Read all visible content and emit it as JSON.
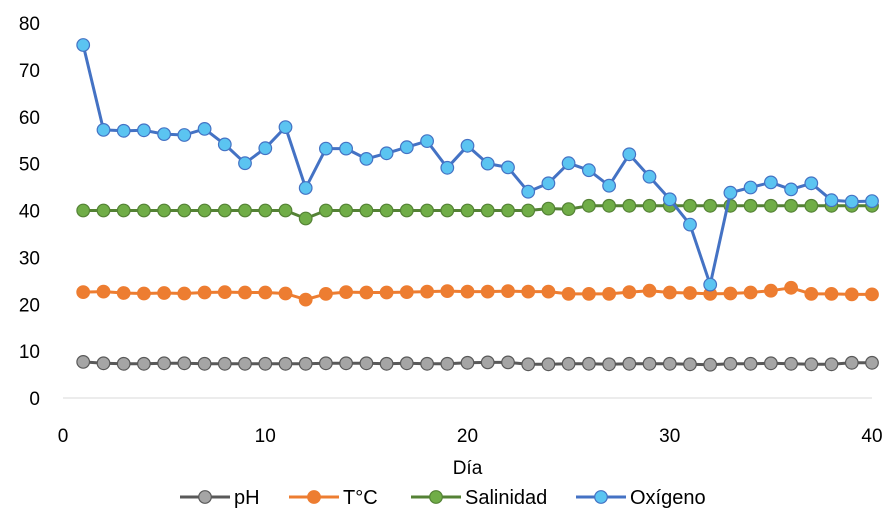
{
  "chart_data": {
    "type": "line",
    "title": "",
    "xlabel": "Día",
    "ylabel": "",
    "xlim": [
      0,
      40
    ],
    "ylim": [
      0,
      80
    ],
    "x_ticks": [
      0,
      10,
      20,
      30,
      40
    ],
    "y_ticks": [
      0,
      10,
      20,
      30,
      40,
      50,
      60,
      70,
      80
    ],
    "grid": false,
    "legend_position": "bottom",
    "x": [
      1,
      2,
      3,
      4,
      5,
      6,
      7,
      8,
      9,
      10,
      11,
      12,
      13,
      14,
      15,
      16,
      17,
      18,
      19,
      20,
      21,
      22,
      23,
      24,
      25,
      26,
      27,
      28,
      29,
      30,
      31,
      32,
      33,
      34,
      35,
      36,
      37,
      38,
      39,
      40
    ],
    "series": [
      {
        "name": "pH",
        "color": "#a5a5a5",
        "stroke": "#595959",
        "values": [
          7.7,
          7.4,
          7.3,
          7.3,
          7.4,
          7.4,
          7.3,
          7.3,
          7.3,
          7.3,
          7.3,
          7.3,
          7.4,
          7.4,
          7.4,
          7.3,
          7.4,
          7.3,
          7.3,
          7.5,
          7.6,
          7.6,
          7.2,
          7.2,
          7.3,
          7.3,
          7.2,
          7.3,
          7.3,
          7.3,
          7.2,
          7.1,
          7.3,
          7.3,
          7.4,
          7.3,
          7.2,
          7.2,
          7.5,
          7.5
        ]
      },
      {
        "name": "T°C",
        "color": "#ed7d31",
        "stroke": "#ed7d31",
        "values": [
          22.6,
          22.7,
          22.4,
          22.3,
          22.4,
          22.3,
          22.5,
          22.6,
          22.5,
          22.5,
          22.3,
          21.0,
          22.2,
          22.6,
          22.5,
          22.5,
          22.6,
          22.7,
          22.8,
          22.7,
          22.7,
          22.8,
          22.7,
          22.7,
          22.2,
          22.2,
          22.2,
          22.6,
          22.9,
          22.5,
          22.4,
          22.2,
          22.3,
          22.5,
          22.9,
          23.5,
          22.2,
          22.2,
          22.1,
          22.1
        ]
      },
      {
        "name": "Salinidad",
        "color": "#70ad47",
        "stroke": "#548235",
        "values": [
          40,
          40,
          40,
          40,
          40,
          40,
          40,
          40,
          40,
          40,
          40,
          38.3,
          40,
          40,
          40,
          40,
          40,
          40,
          40,
          40,
          40,
          40,
          40,
          40.4,
          40.3,
          41,
          41,
          41,
          41,
          41,
          41,
          41,
          41,
          41,
          41,
          41,
          41,
          41,
          41,
          41
        ]
      },
      {
        "name": "Oxígeno",
        "color": "#5bc4f1",
        "stroke": "#4472c4",
        "values": [
          75.3,
          57.2,
          57.0,
          57.1,
          56.3,
          56.1,
          57.4,
          54.1,
          50.1,
          53.3,
          57.8,
          44.8,
          53.2,
          53.2,
          51.0,
          52.2,
          53.5,
          54.8,
          49.1,
          53.8,
          50.0,
          49.2,
          44.0,
          45.8,
          50.1,
          48.6,
          45.3,
          52.0,
          47.2,
          42.4,
          37.0,
          24.2,
          43.8,
          44.9,
          46.0,
          44.5,
          45.8,
          42.2,
          41.9,
          42.0
        ]
      }
    ]
  }
}
